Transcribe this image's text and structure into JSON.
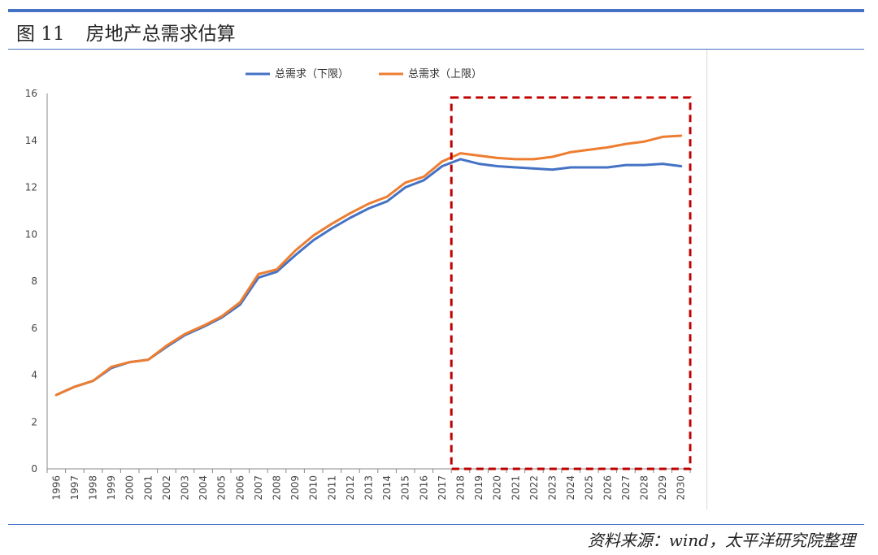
{
  "figure": {
    "label": "图 11",
    "title": "房地产总需求估算",
    "source": "资料来源：wind，太平洋研究院整理"
  },
  "colors": {
    "rule": "#4472C4",
    "series_lower": "#4472C4",
    "series_upper": "#ED7D31",
    "highlight_box": "#C00000"
  },
  "chart_data": {
    "type": "line",
    "title": "",
    "xlabel": "",
    "ylabel": "",
    "ylim": [
      0,
      16
    ],
    "yticks": [
      "0",
      "2",
      "4",
      "6",
      "8",
      "10",
      "12",
      "14",
      "16"
    ],
    "grid": false,
    "legend_position": "top",
    "x": [
      "1996",
      "1997",
      "1998",
      "1999",
      "2000",
      "2001",
      "2002",
      "2003",
      "2004",
      "2005",
      "2006",
      "2007",
      "2008",
      "2009",
      "2010",
      "2011",
      "2012",
      "2013",
      "2014",
      "2015",
      "2016",
      "2017",
      "2018",
      "2019",
      "2020",
      "2021",
      "2022",
      "2023",
      "2024",
      "2025",
      "2026",
      "2027",
      "2028",
      "2029",
      "2030"
    ],
    "series": [
      {
        "name": "总需求（下限）",
        "color": "#4472C4",
        "values": [
          3.15,
          3.5,
          3.75,
          4.3,
          4.55,
          4.65,
          5.2,
          5.7,
          6.05,
          6.45,
          7.0,
          8.15,
          8.4,
          9.1,
          9.75,
          10.25,
          10.7,
          11.1,
          11.4,
          12.0,
          12.3,
          12.9,
          13.2,
          13.0,
          12.9,
          12.85,
          12.8,
          12.75,
          12.85,
          12.85,
          12.85,
          12.95,
          12.95,
          13.0,
          12.9
        ]
      },
      {
        "name": "总需求（上限）",
        "color": "#ED7D31",
        "values": [
          3.15,
          3.5,
          3.75,
          4.35,
          4.55,
          4.65,
          5.25,
          5.75,
          6.1,
          6.5,
          7.1,
          8.3,
          8.5,
          9.3,
          9.95,
          10.45,
          10.9,
          11.3,
          11.6,
          12.2,
          12.45,
          13.1,
          13.45,
          13.35,
          13.25,
          13.2,
          13.2,
          13.3,
          13.5,
          13.6,
          13.7,
          13.85,
          13.95,
          14.15,
          14.2
        ]
      }
    ],
    "highlight_range": {
      "from": "2018",
      "to": "2030"
    }
  }
}
